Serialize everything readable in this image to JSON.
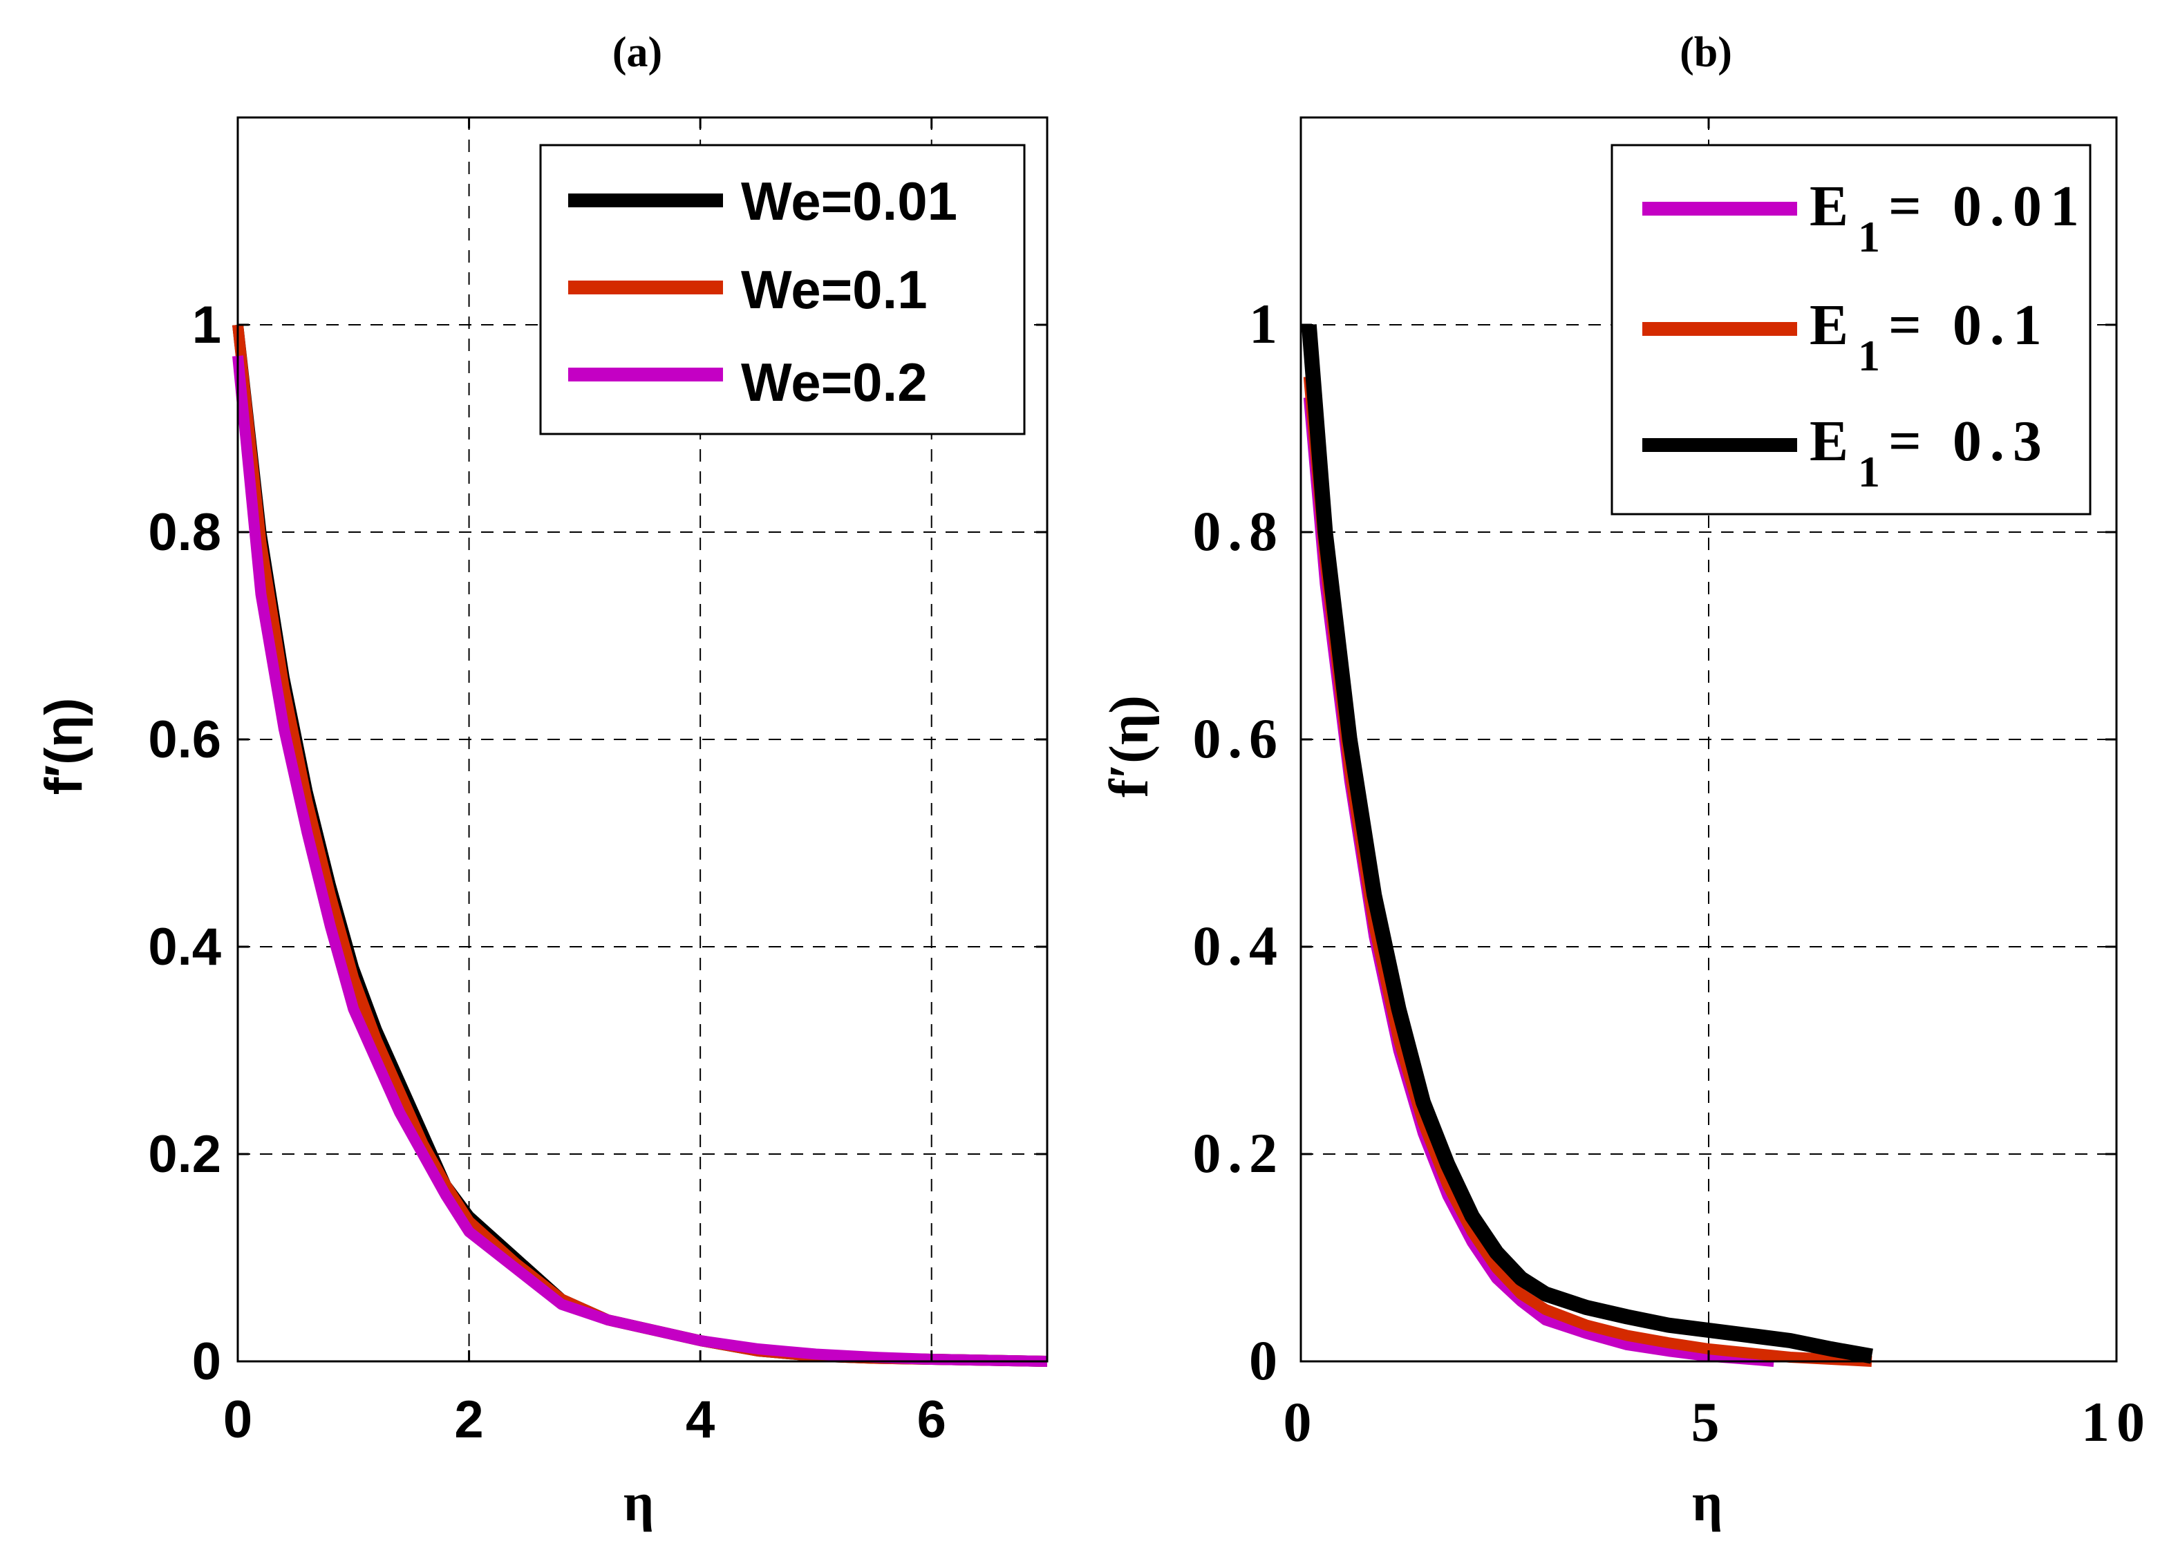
{
  "chart_data": [
    {
      "type": "line",
      "title": "(a)",
      "xlabel": "η",
      "ylabel": "f′(η)",
      "xlim": [
        0,
        7
      ],
      "ylim": [
        0,
        1.2
      ],
      "xticks": [
        0,
        2,
        4,
        6
      ],
      "xtick_labels": [
        "0",
        "2",
        "4",
        "6"
      ],
      "yticks": [
        0,
        0.2,
        0.4,
        0.6,
        0.8,
        1
      ],
      "ytick_labels": [
        "0",
        "0.2",
        "0.4",
        "0.6",
        "0.8",
        "1"
      ],
      "grid": true,
      "legend_position": "top-right",
      "series": [
        {
          "name": "We=0.01",
          "color": "#000000",
          "x": [
            0,
            0.2,
            0.4,
            0.6,
            0.8,
            1.0,
            1.2,
            1.4,
            1.6,
            1.8,
            2.0,
            2.4,
            2.8,
            3.2,
            3.6,
            4.0,
            4.5,
            5.0,
            5.5,
            6.0,
            6.5,
            7.0
          ],
          "y": [
            1.0,
            0.8,
            0.66,
            0.55,
            0.46,
            0.38,
            0.32,
            0.27,
            0.22,
            0.17,
            0.14,
            0.1,
            0.06,
            0.04,
            0.03,
            0.02,
            0.01,
            0.005,
            0.003,
            0.002,
            0.001,
            0.0
          ]
        },
        {
          "name": "We=0.1",
          "color": "#d42a00",
          "x": [
            0,
            0.2,
            0.4,
            0.6,
            0.8,
            1.0,
            1.2,
            1.4,
            1.6,
            1.8,
            2.0,
            2.4,
            2.8,
            3.2,
            3.6,
            4.0,
            4.5,
            5.0,
            5.5,
            6.0,
            6.5,
            7.0
          ],
          "y": [
            1.0,
            0.79,
            0.65,
            0.54,
            0.45,
            0.37,
            0.31,
            0.26,
            0.21,
            0.17,
            0.135,
            0.095,
            0.06,
            0.04,
            0.03,
            0.02,
            0.01,
            0.005,
            0.003,
            0.002,
            0.001,
            0.0
          ]
        },
        {
          "name": "We=0.2",
          "color": "#c400c4",
          "x": [
            0,
            0.2,
            0.4,
            0.6,
            0.8,
            1.0,
            1.2,
            1.4,
            1.6,
            1.8,
            2.0,
            2.4,
            2.8,
            3.2,
            3.6,
            4.0,
            4.5,
            5.0,
            5.5,
            6.0,
            6.5,
            7.0
          ],
          "y": [
            0.97,
            0.74,
            0.61,
            0.51,
            0.42,
            0.34,
            0.29,
            0.24,
            0.2,
            0.16,
            0.125,
            0.09,
            0.055,
            0.04,
            0.03,
            0.02,
            0.012,
            0.007,
            0.004,
            0.002,
            0.001,
            0.0
          ]
        }
      ]
    },
    {
      "type": "line",
      "title": "(b)",
      "xlabel": "η",
      "ylabel": "f′(η)",
      "xlim": [
        0,
        10
      ],
      "ylim": [
        0,
        1.2
      ],
      "xticks": [
        0,
        5,
        10
      ],
      "xtick_labels": [
        "0",
        "5",
        "10"
      ],
      "yticks": [
        0,
        0.2,
        0.4,
        0.6,
        0.8,
        1
      ],
      "ytick_labels": [
        "0",
        "0.2",
        "0.4",
        "0.6",
        "0.8",
        "1"
      ],
      "grid": true,
      "legend_position": "top-right",
      "series": [
        {
          "name": "E1=0.01",
          "name_main": "E",
          "name_sub": "1",
          "name_value": "= 0.01",
          "color": "#c400c4",
          "x": [
            0.1,
            0.3,
            0.6,
            0.9,
            1.2,
            1.5,
            1.8,
            2.1,
            2.4,
            2.7,
            3.0,
            3.5,
            4.0,
            4.5,
            5.0,
            5.5,
            5.8
          ],
          "y": [
            0.93,
            0.75,
            0.56,
            0.41,
            0.3,
            0.22,
            0.16,
            0.115,
            0.08,
            0.058,
            0.04,
            0.027,
            0.016,
            0.01,
            0.005,
            0.002,
            0.0
          ]
        },
        {
          "name": "E1=0.1",
          "name_main": "E",
          "name_sub": "1",
          "name_value": "= 0.1",
          "color": "#d42a00",
          "x": [
            0.1,
            0.3,
            0.6,
            0.9,
            1.2,
            1.5,
            1.8,
            2.1,
            2.4,
            2.7,
            3.0,
            3.5,
            4.0,
            4.5,
            5.0,
            5.5,
            6.0,
            6.5,
            7.0
          ],
          "y": [
            0.95,
            0.77,
            0.57,
            0.42,
            0.31,
            0.23,
            0.17,
            0.125,
            0.09,
            0.065,
            0.05,
            0.035,
            0.025,
            0.018,
            0.012,
            0.008,
            0.004,
            0.002,
            0.0
          ]
        },
        {
          "name": "E1=0.3",
          "name_main": "E",
          "name_sub": "1",
          "name_value": "= 0.3",
          "color": "#000000",
          "x": [
            0.1,
            0.3,
            0.6,
            0.9,
            1.2,
            1.5,
            1.8,
            2.1,
            2.4,
            2.7,
            3.0,
            3.5,
            4.0,
            4.5,
            5.0,
            5.5,
            6.0,
            6.5,
            7.0
          ],
          "y": [
            1.0,
            0.8,
            0.6,
            0.45,
            0.34,
            0.25,
            0.19,
            0.14,
            0.105,
            0.08,
            0.065,
            0.052,
            0.043,
            0.035,
            0.03,
            0.025,
            0.02,
            0.012,
            0.005
          ]
        }
      ]
    }
  ]
}
